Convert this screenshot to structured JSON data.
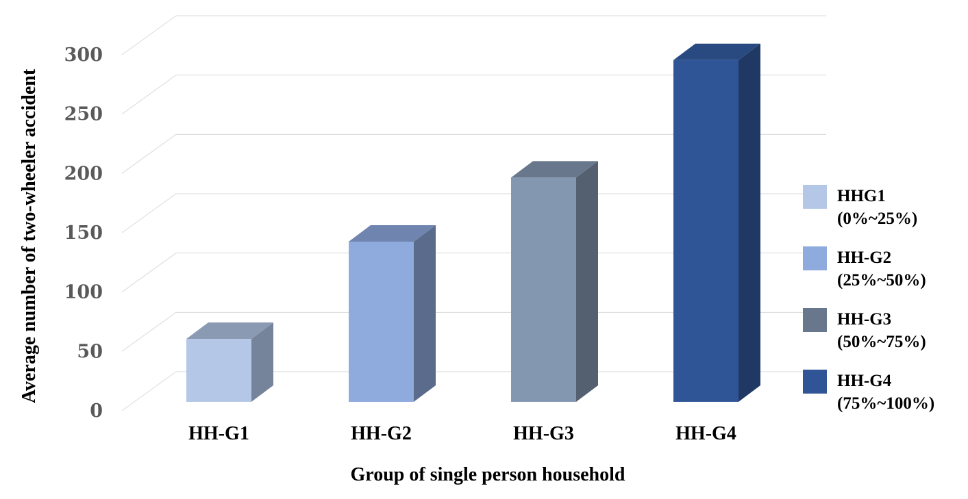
{
  "chart_data": {
    "type": "bar",
    "categories": [
      "HH-G1",
      "HH-G2",
      "HH-G3",
      "HH-G4"
    ],
    "values": [
      53,
      135,
      189,
      288
    ],
    "xlabel": "Group of single person household",
    "ylabel": "Average number of two-wheeler accident",
    "ylim": [
      0,
      300
    ],
    "yticks": [
      "0",
      "50",
      "100",
      "150",
      "200",
      "250",
      "300"
    ],
    "grid": true,
    "legend_position": "right",
    "legend": [
      {
        "line1": "HHG1",
        "line2": "(0%~25%)"
      },
      {
        "line1": "HH-G2",
        "line2": "(25%~50%)"
      },
      {
        "line1": "HH-G3",
        "line2": "(50%~75%)"
      },
      {
        "line1": "HH-G4",
        "line2": "(75%~100%)"
      }
    ],
    "colors": [
      {
        "front": "#b4c7e7",
        "side": "#76849b",
        "top": "#8a9ab3"
      },
      {
        "front": "#8faadc",
        "side": "#5b6b8c",
        "top": "#6f84ae"
      },
      {
        "front": "#8497b0",
        "side": "#545f70",
        "top": "#68778b"
      },
      {
        "front": "#2f5597",
        "side": "#203864",
        "top": "#284a80"
      }
    ],
    "legend_colors": [
      "#b4c7e7",
      "#8faadc",
      "#68778b",
      "#2f5597"
    ]
  }
}
